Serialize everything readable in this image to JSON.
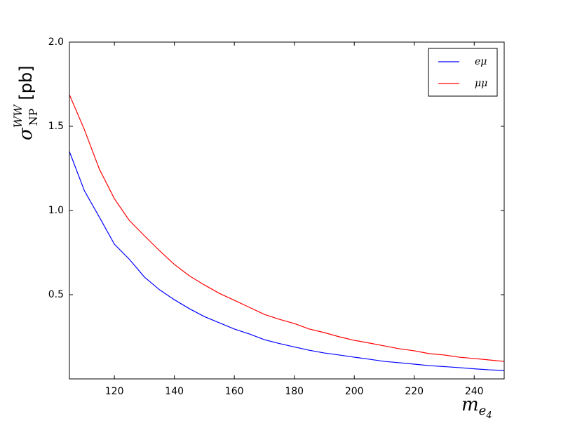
{
  "chart_data": {
    "type": "line",
    "xlabel": [
      "m",
      "e",
      "4"
    ],
    "ylabel": [
      "σ",
      "WW",
      "NP",
      "[pb]"
    ],
    "x": [
      105,
      110,
      115,
      120,
      125,
      130,
      135,
      140,
      145,
      150,
      155,
      160,
      165,
      170,
      175,
      180,
      185,
      190,
      195,
      200,
      205,
      210,
      215,
      220,
      225,
      230,
      235,
      240,
      245,
      250
    ],
    "series": [
      {
        "name": "eμ",
        "color": "#0000ff",
        "values": [
          1.35,
          1.117,
          0.96,
          0.8,
          0.71,
          0.605,
          0.53,
          0.47,
          0.417,
          0.37,
          0.333,
          0.296,
          0.267,
          0.233,
          0.21,
          0.19,
          0.17,
          0.154,
          0.142,
          0.129,
          0.117,
          0.104,
          0.096,
          0.0875,
          0.079,
          0.073,
          0.067,
          0.06,
          0.054,
          0.05
        ]
      },
      {
        "name": "μμ",
        "color": "#ff0000",
        "values": [
          1.6875,
          1.48,
          1.245,
          1.07,
          0.94,
          0.85,
          0.762,
          0.68,
          0.612,
          0.558,
          0.508,
          0.467,
          0.425,
          0.383,
          0.354,
          0.329,
          0.296,
          0.275,
          0.25,
          0.229,
          0.213,
          0.196,
          0.179,
          0.167,
          0.15,
          0.142,
          0.129,
          0.121,
          0.1125,
          0.104
        ]
      }
    ],
    "xlim": [
      105,
      250
    ],
    "ylim": [
      0,
      2
    ],
    "xticks": [
      120,
      140,
      160,
      180,
      200,
      220,
      240
    ],
    "yticks": [
      {
        "value": 0.5,
        "label": "0.5"
      },
      {
        "value": 1.0,
        "label": "1.0"
      },
      {
        "value": 1.5,
        "label": "1.5"
      },
      {
        "value": 2.0,
        "label": "2.0"
      }
    ],
    "grid": false,
    "legend": "upper right"
  }
}
